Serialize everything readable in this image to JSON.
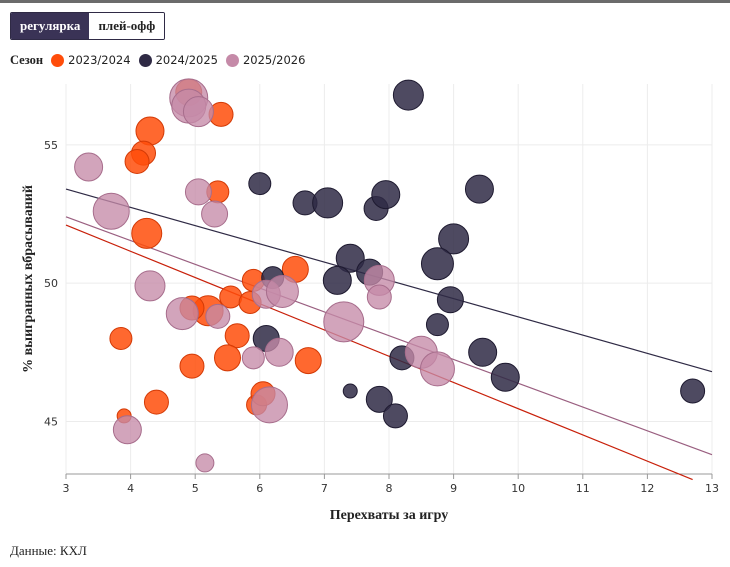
{
  "toggle": {
    "regular_label": "регулярка",
    "playoff_label": "плей-офф",
    "active": "regular"
  },
  "legend": {
    "title": "Сезон",
    "items": [
      {
        "label": "2023/2024",
        "color": "#ff4d0a"
      },
      {
        "label": "2024/2025",
        "color": "#2f2a45"
      },
      {
        "label": "2025/2026",
        "color": "#c58aa8"
      }
    ]
  },
  "source": "Данные: КХЛ",
  "chart_data": {
    "type": "scatter",
    "xlabel": "Перехваты за игру",
    "ylabel": "% выигранных вбрасываний",
    "xlim": [
      3,
      13
    ],
    "ylim": [
      43.1,
      57.2
    ],
    "xticks": [
      "3",
      "4",
      "5",
      "6",
      "7",
      "8",
      "9",
      "10",
      "11",
      "12",
      "13"
    ],
    "yticks": [
      "45",
      "50",
      "55"
    ],
    "grid": true,
    "series": [
      {
        "name": "2023/2024",
        "color": "#ff4d0a",
        "trend": [
          [
            3,
            52.1
          ],
          [
            12.7,
            42.9
          ]
        ],
        "points": [
          [
            4.3,
            55.5,
            14
          ],
          [
            4.2,
            54.7,
            12
          ],
          [
            4.1,
            54.4,
            12
          ],
          [
            5.4,
            56.1,
            12
          ],
          [
            4.9,
            56.9,
            13
          ],
          [
            5.35,
            53.3,
            11
          ],
          [
            4.25,
            51.8,
            15
          ],
          [
            5.2,
            49.0,
            15
          ],
          [
            4.95,
            49.1,
            12
          ],
          [
            5.55,
            49.5,
            11
          ],
          [
            5.85,
            49.3,
            11
          ],
          [
            5.9,
            50.1,
            11
          ],
          [
            6.55,
            50.5,
            13
          ],
          [
            5.65,
            48.1,
            12
          ],
          [
            3.85,
            48.0,
            11
          ],
          [
            4.95,
            47.0,
            12
          ],
          [
            5.5,
            47.3,
            13
          ],
          [
            6.75,
            47.2,
            13
          ],
          [
            4.4,
            45.7,
            12
          ],
          [
            5.95,
            45.6,
            10
          ],
          [
            6.05,
            46.0,
            12
          ],
          [
            3.9,
            45.2,
            7
          ]
        ]
      },
      {
        "name": "2024/2025",
        "color": "#2f2a45",
        "trend": [
          [
            3,
            53.4
          ],
          [
            13,
            46.8
          ]
        ],
        "points": [
          [
            8.3,
            56.8,
            15
          ],
          [
            6.0,
            53.6,
            11
          ],
          [
            6.7,
            52.9,
            12
          ],
          [
            7.05,
            52.9,
            15
          ],
          [
            7.8,
            52.7,
            12
          ],
          [
            7.95,
            53.2,
            14
          ],
          [
            9.4,
            53.4,
            14
          ],
          [
            9.0,
            51.6,
            15
          ],
          [
            7.4,
            50.9,
            14
          ],
          [
            7.2,
            50.1,
            14
          ],
          [
            7.7,
            50.4,
            13
          ],
          [
            8.75,
            50.7,
            16
          ],
          [
            6.2,
            50.2,
            11
          ],
          [
            8.95,
            49.4,
            13
          ],
          [
            8.75,
            48.5,
            11
          ],
          [
            6.1,
            48.0,
            13
          ],
          [
            8.2,
            47.3,
            12
          ],
          [
            9.45,
            47.5,
            14
          ],
          [
            9.8,
            46.6,
            14
          ],
          [
            12.7,
            46.1,
            12
          ],
          [
            7.4,
            46.1,
            7
          ],
          [
            7.85,
            45.8,
            13
          ],
          [
            8.1,
            45.2,
            12
          ]
        ]
      },
      {
        "name": "2025/2026",
        "color": "#c58aa8",
        "trend": [
          [
            3,
            52.4
          ],
          [
            13,
            43.8
          ]
        ],
        "points": [
          [
            4.9,
            56.7,
            19
          ],
          [
            4.9,
            56.4,
            17
          ],
          [
            5.05,
            56.2,
            15
          ],
          [
            3.35,
            54.2,
            14
          ],
          [
            5.05,
            53.3,
            13
          ],
          [
            3.7,
            52.6,
            18
          ],
          [
            5.3,
            52.5,
            13
          ],
          [
            4.3,
            49.9,
            15
          ],
          [
            4.8,
            48.9,
            16
          ],
          [
            5.35,
            48.8,
            12
          ],
          [
            6.1,
            49.6,
            14
          ],
          [
            6.35,
            49.7,
            16
          ],
          [
            7.3,
            48.6,
            20
          ],
          [
            7.85,
            50.1,
            15
          ],
          [
            7.85,
            49.5,
            12
          ],
          [
            5.9,
            47.3,
            11
          ],
          [
            6.3,
            47.5,
            14
          ],
          [
            8.5,
            47.5,
            16
          ],
          [
            8.75,
            46.9,
            17
          ],
          [
            6.15,
            45.6,
            18
          ],
          [
            3.95,
            44.7,
            14
          ],
          [
            5.15,
            43.5,
            9
          ]
        ]
      }
    ]
  }
}
